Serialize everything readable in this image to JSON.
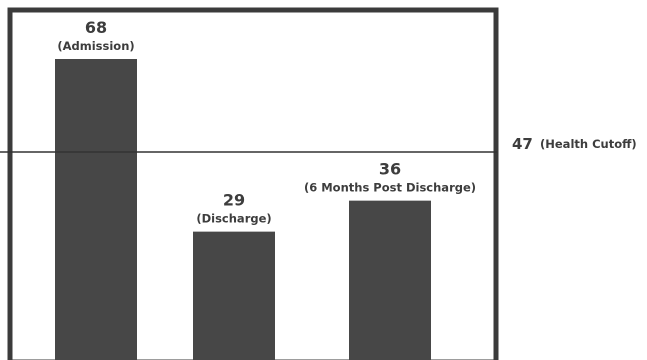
{
  "chart_data": {
    "type": "bar",
    "categories": [
      "Admission",
      "Discharge",
      "6 Months Post Discharge"
    ],
    "values": [
      68,
      29,
      36
    ],
    "value_labels": [
      "68",
      "29",
      "36"
    ],
    "category_labels": [
      "(Admission)",
      "(Discharge)",
      "(6 Months Post Discharge)"
    ],
    "reference_line": {
      "value": 47,
      "value_label": "47",
      "label": "(Health Cutoff)"
    },
    "ylim": [
      0,
      78
    ],
    "grid": false,
    "legend": "none",
    "colors": {
      "bar": "#474747",
      "frame": "#3b3b3b",
      "reference_line": "#333333",
      "text": "#3d3d3d"
    }
  }
}
